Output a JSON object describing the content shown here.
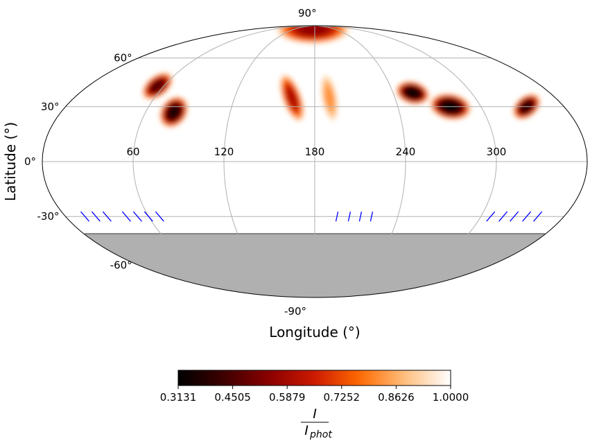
{
  "chart_data": {
    "type": "heatmap",
    "projection": "mollweide",
    "xlabel": "Longitude ($^\\circ$)",
    "xlabel_display": "Longitude (°)",
    "ylabel_display": "Latitude (°)",
    "longitude_ticks": [
      60,
      120,
      180,
      240,
      300
    ],
    "longitude_tick_labels": [
      "60",
      "120",
      "180",
      "240",
      "300"
    ],
    "latitude_ticks": [
      90,
      60,
      30,
      0,
      -30,
      -60,
      -90
    ],
    "latitude_tick_labels": [
      "90°",
      "60°",
      "30°",
      "0°",
      "-30°",
      "-60°",
      "-90°"
    ],
    "grid": true,
    "masked_region": {
      "lat_max": -40,
      "color": "#b0b0b0",
      "description": "unobserved hemisphere"
    },
    "spots": [
      {
        "lon": 55,
        "lat": 42,
        "size": 13,
        "intensity_min": 0.45,
        "angle": -38,
        "elong": 1.7
      },
      {
        "lon": 80,
        "lat": 27,
        "size": 16,
        "intensity_min": 0.35,
        "angle": -55,
        "elong": 1.3
      },
      {
        "lon": 163,
        "lat": 35,
        "size": 12,
        "intensity_min": 0.6,
        "angle": 70,
        "elong": 2.6
      },
      {
        "lon": 191,
        "lat": 35,
        "size": 10,
        "intensity_min": 0.82,
        "angle": 80,
        "elong": 3.0
      },
      {
        "lon": 175,
        "lat": 84,
        "size": 18,
        "intensity_min": 0.55,
        "angle": 0,
        "elong": 2.5
      },
      {
        "lon": 255,
        "lat": 38,
        "size": 14,
        "intensity_min": 0.32,
        "angle": 15,
        "elong": 1.5
      },
      {
        "lon": 278,
        "lat": 30,
        "size": 16,
        "intensity_min": 0.31,
        "angle": 10,
        "elong": 1.6
      },
      {
        "lon": 333,
        "lat": 30,
        "size": 13,
        "intensity_min": 0.38,
        "angle": -40,
        "elong": 1.5
      }
    ],
    "phase_markers": [
      {
        "lon": 14,
        "lat": -30,
        "tilt": "backslash"
      },
      {
        "lon": 22,
        "lat": -30,
        "tilt": "backslash"
      },
      {
        "lon": 30,
        "lat": -30,
        "tilt": "backslash"
      },
      {
        "lon": 44,
        "lat": -30,
        "tilt": "backslash"
      },
      {
        "lon": 52,
        "lat": -30,
        "tilt": "backslash"
      },
      {
        "lon": 60,
        "lat": -30,
        "tilt": "backslash"
      },
      {
        "lon": 68,
        "lat": -30,
        "tilt": "backslash"
      },
      {
        "lon": 196,
        "lat": -30,
        "tilt": "upright"
      },
      {
        "lon": 205,
        "lat": -30,
        "tilt": "upright"
      },
      {
        "lon": 213,
        "lat": -30,
        "tilt": "upright"
      },
      {
        "lon": 221,
        "lat": -30,
        "tilt": "upright"
      },
      {
        "lon": 307,
        "lat": -30,
        "tilt": "slash"
      },
      {
        "lon": 316,
        "lat": -30,
        "tilt": "slash"
      },
      {
        "lon": 324,
        "lat": -30,
        "tilt": "slash"
      },
      {
        "lon": 333,
        "lat": -30,
        "tilt": "slash"
      },
      {
        "lon": 341,
        "lat": -30,
        "tilt": "slash"
      }
    ],
    "colorbar": {
      "ticks": [
        "0.3131",
        "0.4505",
        "0.5879",
        "0.7252",
        "0.8626",
        "1.0000"
      ],
      "min": 0.3131,
      "max": 1.0,
      "label_numerator": "I",
      "label_denominator": "phot",
      "colormap": "gist_heat",
      "stops": [
        "#000000",
        "#3d0000",
        "#8a0000",
        "#cc1a00",
        "#ff6a00",
        "#ffc080",
        "#ffffff"
      ]
    },
    "colors": {
      "phase_marker": "#0000ff",
      "grid": "#b0b0b0",
      "mask": "#b0b0b0",
      "outline": "#000000"
    }
  }
}
